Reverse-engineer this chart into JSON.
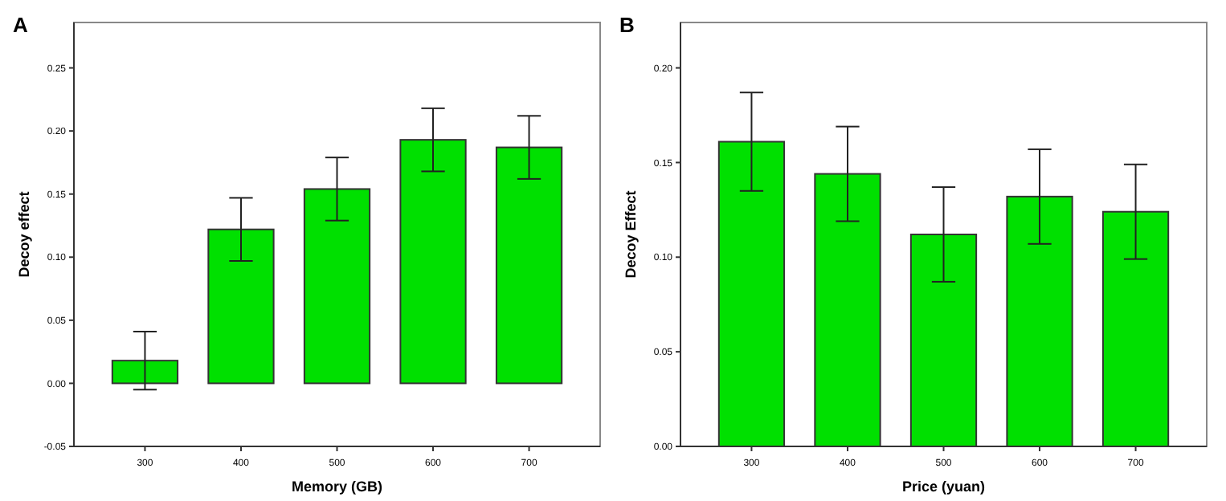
{
  "chart_data": [
    {
      "type": "bar",
      "title": "A",
      "xlabel": "Memory (GB)",
      "ylabel": "Decoy effect",
      "categories": [
        "300",
        "400",
        "500",
        "600",
        "700"
      ],
      "values": [
        0.018,
        0.122,
        0.154,
        0.193,
        0.187
      ],
      "errors": [
        0.023,
        0.025,
        0.025,
        0.025,
        0.025
      ],
      "color": "#00e000",
      "ylim": [
        -0.05,
        0.286
      ],
      "yticks": [
        {
          "value": -0.05,
          "label": "-0.05"
        },
        {
          "value": 0,
          "label": "0.00"
        },
        {
          "value": 0.05,
          "label": "0.05"
        },
        {
          "value": 0.1,
          "label": "0.10"
        },
        {
          "value": 0.15,
          "label": "0.15"
        },
        {
          "value": 0.2,
          "label": "0.20"
        },
        {
          "value": 0.25,
          "label": "0.25"
        }
      ],
      "grid": false
    },
    {
      "type": "bar",
      "title": "B",
      "xlabel": "Price (yuan)",
      "ylabel": "Decoy Effect",
      "categories": [
        "300",
        "400",
        "500",
        "600",
        "700"
      ],
      "values": [
        0.161,
        0.144,
        0.112,
        0.132,
        0.124
      ],
      "errors": [
        0.026,
        0.025,
        0.025,
        0.025,
        0.025
      ],
      "color": "#00e000",
      "ylim": [
        0,
        0.224
      ],
      "yticks": [
        {
          "value": 0,
          "label": "0.00"
        },
        {
          "value": 0.05,
          "label": "0.05"
        },
        {
          "value": 0.1,
          "label": "0.10"
        },
        {
          "value": 0.15,
          "label": "0.15"
        },
        {
          "value": 0.2,
          "label": "0.20"
        }
      ],
      "grid": false
    }
  ]
}
